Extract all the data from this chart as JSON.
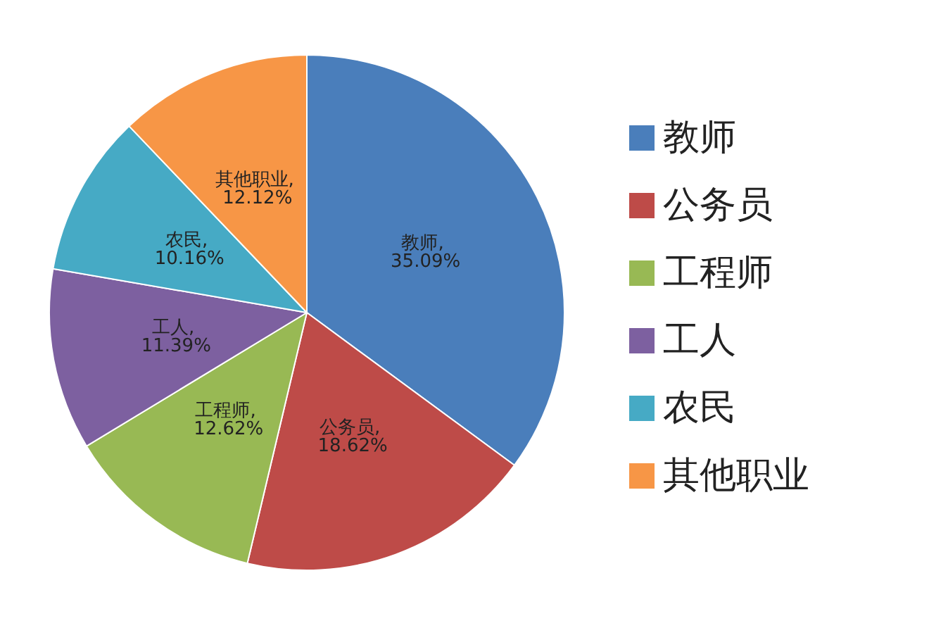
{
  "chart_data": {
    "type": "pie",
    "categories": [
      "教师",
      "公务员",
      "工程师",
      "工人",
      "农民",
      "其他职业"
    ],
    "values": [
      35.09,
      18.62,
      12.62,
      11.39,
      10.16,
      12.12
    ],
    "colors": [
      "#4a7ebb",
      "#be4b48",
      "#98b954",
      "#7d60a0",
      "#46aac5",
      "#f79646"
    ],
    "value_labels": [
      "教师, 35.09%",
      "公务员, 18.62%",
      "工程师, 12.62%",
      "工人, 11.39%",
      "农民, 10.16%",
      "其他职业, 12.12%"
    ],
    "legend": "right"
  }
}
